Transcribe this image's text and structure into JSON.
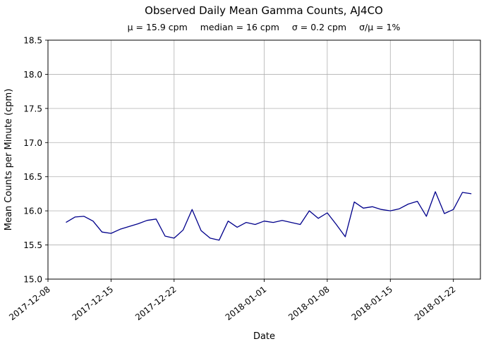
{
  "chart_data": {
    "type": "line",
    "title": "Observed Daily Mean Gamma Counts, AJ4CO",
    "stats": [
      "μ = 15.9 cpm",
      "median = 16 cpm",
      "σ = 0.2 cpm",
      "σ/μ = 1%"
    ],
    "xlabel": "Date",
    "ylabel": "Mean Counts per Minute (cpm)",
    "ylim": [
      15.0,
      18.5
    ],
    "yticks": [
      15.0,
      15.5,
      16.0,
      16.5,
      17.0,
      17.5,
      18.0,
      18.5
    ],
    "x_tick_dates": [
      "2017-12-08",
      "2017-12-15",
      "2017-12-22",
      "2018-01-01",
      "2018-01-08",
      "2018-01-15",
      "2018-01-22"
    ],
    "grid": true,
    "legend": "none",
    "line_color": "#00008b",
    "grid_color": "#b0b0b0",
    "series": [
      {
        "name": "daily-mean-gamma-counts",
        "x": [
          "2017-12-10",
          "2017-12-11",
          "2017-12-12",
          "2017-12-13",
          "2017-12-14",
          "2017-12-15",
          "2017-12-16",
          "2017-12-17",
          "2017-12-18",
          "2017-12-19",
          "2017-12-20",
          "2017-12-21",
          "2017-12-22",
          "2017-12-23",
          "2017-12-24",
          "2017-12-25",
          "2017-12-26",
          "2017-12-27",
          "2017-12-28",
          "2017-12-29",
          "2017-12-30",
          "2017-12-31",
          "2018-01-01",
          "2018-01-02",
          "2018-01-03",
          "2018-01-04",
          "2018-01-05",
          "2018-01-06",
          "2018-01-07",
          "2018-01-08",
          "2018-01-09",
          "2018-01-10",
          "2018-01-11",
          "2018-01-12",
          "2018-01-13",
          "2018-01-14",
          "2018-01-15",
          "2018-01-16",
          "2018-01-17",
          "2018-01-18",
          "2018-01-19",
          "2018-01-20",
          "2018-01-21",
          "2018-01-22",
          "2018-01-23",
          "2018-01-24"
        ],
        "y": [
          15.83,
          15.91,
          15.92,
          15.85,
          15.69,
          15.67,
          15.73,
          15.77,
          15.81,
          15.86,
          15.88,
          15.63,
          15.6,
          15.72,
          16.02,
          15.71,
          15.6,
          15.57,
          15.85,
          15.76,
          15.83,
          15.8,
          15.85,
          15.83,
          15.86,
          15.83,
          15.8,
          16.0,
          15.89,
          15.97,
          15.8,
          15.62,
          16.13,
          16.04,
          16.06,
          16.02,
          16.0,
          16.03,
          16.1,
          16.14,
          15.92,
          16.28,
          15.96,
          16.02,
          16.27,
          16.25
        ]
      }
    ]
  }
}
